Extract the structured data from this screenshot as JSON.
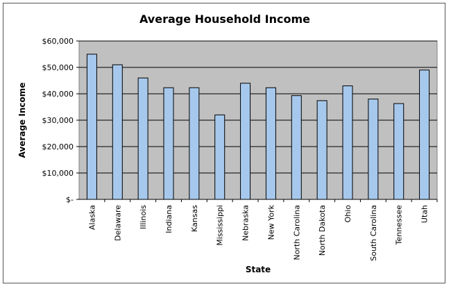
{
  "chart_data": {
    "type": "bar",
    "title": "Average Household Income",
    "xlabel": "State",
    "ylabel": "Average Income",
    "categories": [
      "Alaska",
      "Delaware",
      "Illinois",
      "Indiana",
      "Kansas",
      "Mississippi",
      "Nebraska",
      "New York",
      "North Carolina",
      "North Dakota",
      "Ohio",
      "South Carolina",
      "Tennessee",
      "Utah"
    ],
    "values": [
      55000,
      51000,
      46000,
      42300,
      42300,
      32000,
      44000,
      42300,
      39300,
      37400,
      43000,
      38000,
      36300,
      49000
    ],
    "ylim": [
      0,
      60000
    ],
    "yticks": [
      0,
      10000,
      20000,
      30000,
      40000,
      50000,
      60000
    ],
    "ytick_labels": [
      "$-",
      "$10,000",
      "$20,000",
      "$30,000",
      "$40,000",
      "$50,000",
      "$60,000"
    ],
    "grid": true,
    "legend": "none",
    "colors": {
      "bar_fill": "#a6c8ec",
      "bar_stroke": "#000000",
      "plot_background": "#c0c0c0",
      "gridline": "#000000"
    }
  }
}
